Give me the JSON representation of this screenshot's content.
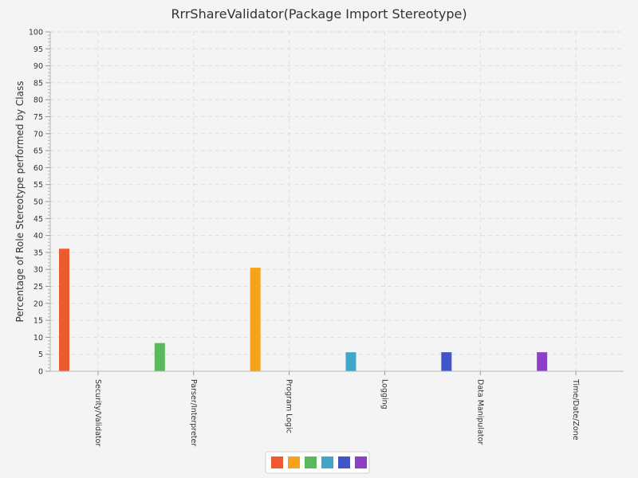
{
  "chart_data": {
    "type": "bar",
    "title": "RrrShareValidator(Package Import Stereotype)",
    "xlabel": "",
    "ylabel": "Percentage of Role Stereotype performed by Class",
    "categories": [
      "Security/Validator",
      "Parser/Interpreter",
      "Program Logic",
      "Logging",
      "Data Manipulator",
      "Time/Date/Zone"
    ],
    "values": [
      36.1,
      8.3,
      30.5,
      5.6,
      5.6,
      5.6
    ],
    "colors": [
      "#ee5a30",
      "#5cb85c",
      "#f5a31a",
      "#3fa7c9",
      "#3f55c9",
      "#8e3fc9"
    ],
    "legend_colors": [
      "#ee5a30",
      "#f5a31a",
      "#5cb85c",
      "#3fa7c9",
      "#3f55c9",
      "#8e3fc9"
    ],
    "ylim": [
      0,
      100
    ],
    "yticks": [
      0,
      5,
      10,
      15,
      20,
      25,
      30,
      35,
      40,
      45,
      50,
      55,
      60,
      65,
      70,
      75,
      80,
      85,
      90,
      95,
      100
    ],
    "grid": true,
    "legend": "bottom-center"
  }
}
